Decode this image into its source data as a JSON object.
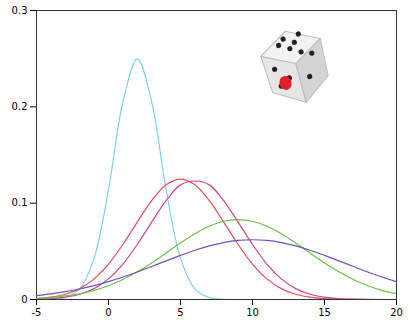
{
  "chart_data": {
    "type": "line",
    "x": [
      -5,
      -4,
      -3,
      -2,
      -1,
      0,
      1,
      2,
      3,
      4,
      5,
      6,
      7,
      8,
      9,
      10,
      11,
      12,
      13,
      14,
      15,
      16,
      17,
      18,
      19,
      20
    ],
    "series": [
      {
        "color": "#7fd3e3",
        "values": [
          0,
          0.0002,
          0.002,
          0.011,
          0.043,
          0.114,
          0.205,
          0.25,
          0.205,
          0.114,
          0.043,
          0.011,
          0.002,
          0.0002,
          0,
          0,
          0,
          0,
          0,
          0,
          0,
          0,
          0,
          0,
          0,
          0
        ]
      },
      {
        "color": "#e0505a",
        "values": [
          0.0009,
          0.0024,
          0.0054,
          0.0113,
          0.0214,
          0.0367,
          0.0571,
          0.0804,
          0.1027,
          0.119,
          0.125,
          0.119,
          0.1027,
          0.0804,
          0.0571,
          0.0367,
          0.0214,
          0.0113,
          0.0054,
          0.0024,
          0.0009,
          0.0003,
          0.0001,
          0,
          0,
          0
        ]
      },
      {
        "color": "#d0448e",
        "values": [
          0.0004,
          0.0009,
          0.0024,
          0.0054,
          0.0113,
          0.0214,
          0.0367,
          0.0571,
          0.0804,
          0.1027,
          0.119,
          0.123,
          0.119,
          0.1027,
          0.0804,
          0.0571,
          0.0367,
          0.0214,
          0.0113,
          0.0054,
          0.0024,
          0.0009,
          0.0003,
          0.0001,
          0,
          0
        ]
      },
      {
        "color": "#6cc04a",
        "values": [
          0.0012,
          0.0021,
          0.0037,
          0.006,
          0.0095,
          0.0143,
          0.0207,
          0.0287,
          0.038,
          0.0483,
          0.0587,
          0.0683,
          0.0761,
          0.0812,
          0.083,
          0.0812,
          0.0761,
          0.0683,
          0.0587,
          0.0483,
          0.038,
          0.0287,
          0.0207,
          0.0143,
          0.0095,
          0.006
        ]
      },
      {
        "color": "#7050c0",
        "values": [
          0.0041,
          0.0058,
          0.0081,
          0.0109,
          0.0144,
          0.0185,
          0.0233,
          0.0286,
          0.0343,
          0.0401,
          0.0458,
          0.0511,
          0.0556,
          0.0591,
          0.0613,
          0.062,
          0.0613,
          0.0591,
          0.0556,
          0.0511,
          0.0458,
          0.0401,
          0.0343,
          0.0286,
          0.0233,
          0.0185
        ]
      }
    ],
    "xlim": [
      -5,
      20
    ],
    "xticks": [
      -5,
      0,
      5,
      10,
      15,
      20
    ],
    "ylim": [
      0,
      0.3
    ],
    "yticks": [
      0,
      0.1,
      0.2,
      0.3
    ],
    "grid": false
  }
}
